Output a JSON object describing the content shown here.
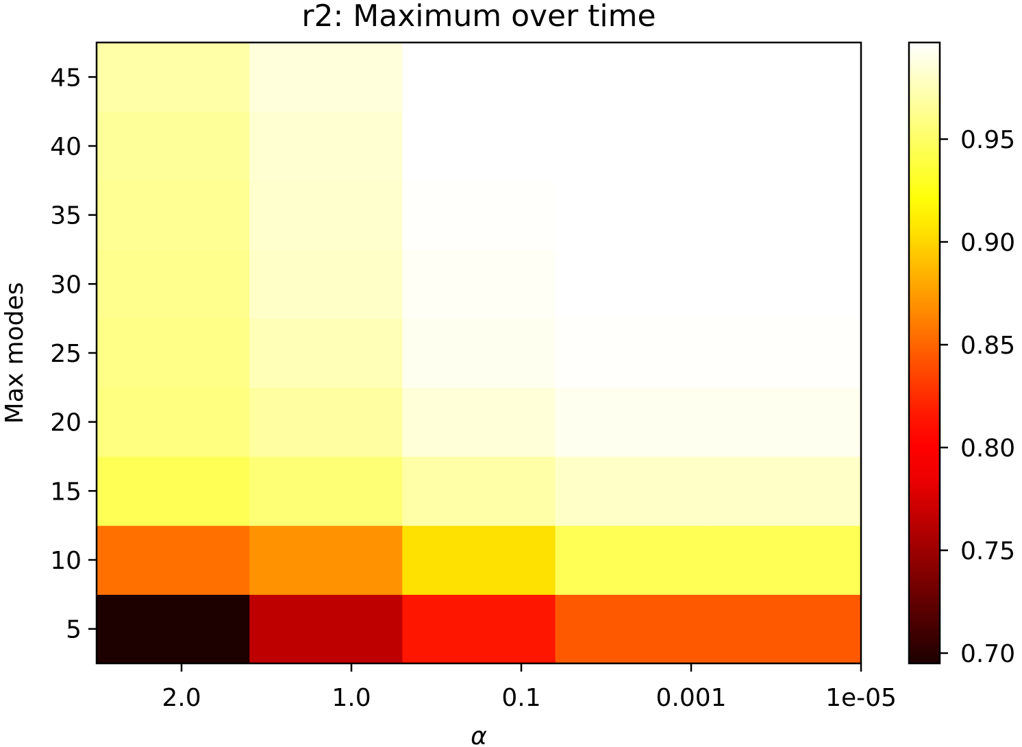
{
  "chart_data": {
    "type": "heatmap",
    "title": "r2: Maximum over time",
    "xlabel": "α",
    "ylabel": "Max modes",
    "x_categories": [
      "2.0",
      "1.0",
      "0.1",
      "0.001",
      "1e-05"
    ],
    "y_values": [
      5,
      10,
      15,
      20,
      25,
      30,
      35,
      40,
      45
    ],
    "y_ticks": [
      "5",
      "10",
      "15",
      "20",
      "25",
      "30",
      "35",
      "40",
      "45"
    ],
    "colormap": "hot",
    "colorbar_range": [
      0.695,
      0.997
    ],
    "colorbar_ticks": [
      "0.70",
      "0.75",
      "0.80",
      "0.85",
      "0.90",
      "0.95"
    ],
    "values": [
      [
        0.695,
        0.765,
        0.815,
        0.845,
        0.845
      ],
      [
        0.855,
        0.87,
        0.905,
        0.945,
        0.945
      ],
      [
        0.945,
        0.955,
        0.97,
        0.98,
        0.98
      ],
      [
        0.958,
        0.968,
        0.985,
        0.992,
        0.992
      ],
      [
        0.96,
        0.975,
        0.992,
        0.996,
        0.996
      ],
      [
        0.962,
        0.98,
        0.994,
        0.997,
        0.997
      ],
      [
        0.964,
        0.982,
        0.996,
        0.997,
        0.997
      ],
      [
        0.966,
        0.983,
        0.997,
        0.997,
        0.997
      ],
      [
        0.97,
        0.986,
        0.997,
        0.997,
        0.997
      ]
    ],
    "grid": false,
    "legend": "colorbar-right"
  }
}
